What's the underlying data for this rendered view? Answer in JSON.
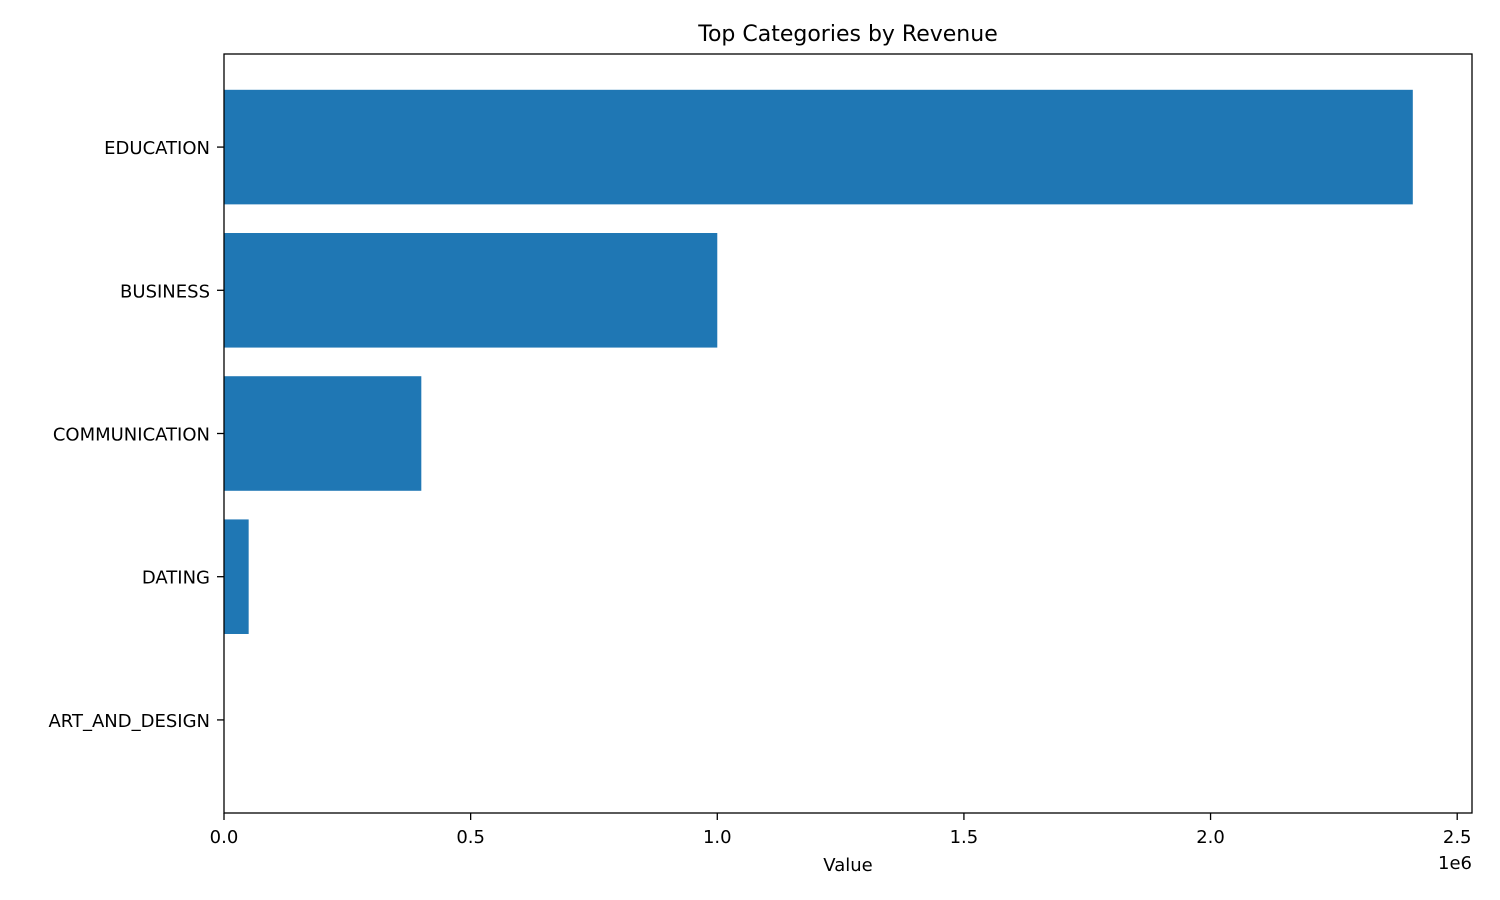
{
  "chart_data": {
    "type": "bar",
    "orientation": "horizontal",
    "title": "Top Categories by Revenue",
    "xlabel": "Value",
    "ylabel": "",
    "categories": [
      "EDUCATION",
      "BUSINESS",
      "COMMUNICATION",
      "DATING",
      "ART_AND_DESIGN"
    ],
    "values": [
      2410000,
      1000000,
      400000,
      50000,
      0
    ],
    "xlim": [
      0,
      2530000
    ],
    "xticks": [
      0,
      500000,
      1000000,
      1500000,
      2000000,
      2500000
    ],
    "xtick_labels": [
      "0.0",
      "0.5",
      "1.0",
      "1.5",
      "2.0",
      "2.5"
    ],
    "x_offset_label": "1e6",
    "bar_color": "#1f77b4",
    "grid": false,
    "legend": "none"
  }
}
